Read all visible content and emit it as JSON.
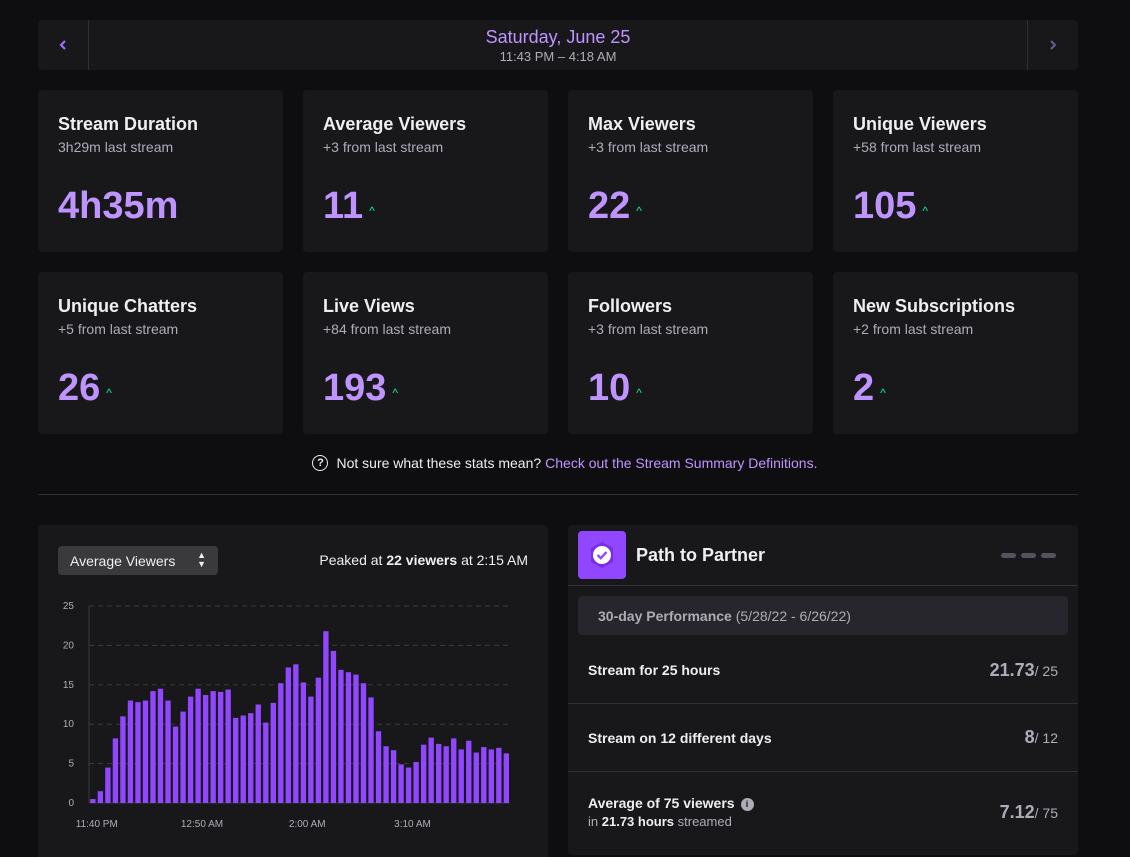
{
  "date_nav": {
    "prev_icon": "chevron-left-icon",
    "next_icon": "chevron-right-icon",
    "title": "Saturday, June 25",
    "range": "11:43 PM – 4:18 AM"
  },
  "stats": [
    {
      "title": "Stream Duration",
      "sub": "3h29m last stream",
      "value": "4h35m",
      "trend": ""
    },
    {
      "title": "Average Viewers",
      "sub": "+3 from last stream",
      "value": "11",
      "trend": "up"
    },
    {
      "title": "Max Viewers",
      "sub": "+3 from last stream",
      "value": "22",
      "trend": "up"
    },
    {
      "title": "Unique Viewers",
      "sub": "+58 from last stream",
      "value": "105",
      "trend": "up"
    },
    {
      "title": "Unique Chatters",
      "sub": "+5 from last stream",
      "value": "26",
      "trend": "up"
    },
    {
      "title": "Live Views",
      "sub": "+84 from last stream",
      "value": "193",
      "trend": "up"
    },
    {
      "title": "Followers",
      "sub": "+3 from last stream",
      "value": "10",
      "trend": "up"
    },
    {
      "title": "New Subscriptions",
      "sub": "+2 from last stream",
      "value": "2",
      "trend": "up"
    }
  ],
  "help": {
    "text": "Not sure what these stats mean?",
    "link": "Check out the Stream Summary Definitions."
  },
  "chart_panel": {
    "select_value": "Average Viewers",
    "peak_prefix": "Peaked at",
    "peak_value": "22 viewers",
    "peak_suffix": "at 2:15 AM"
  },
  "chart_data": {
    "type": "bar",
    "title": "",
    "xlabel": "",
    "ylabel": "",
    "ylim": [
      0,
      25
    ],
    "yticks": [
      0,
      5,
      10,
      15,
      20,
      25
    ],
    "grid": true,
    "xtick_labels": [
      {
        "label": "11:40 PM",
        "index": 0
      },
      {
        "label": "12:50 AM",
        "index": 14
      },
      {
        "label": "2:00 AM",
        "index": 28
      },
      {
        "label": "3:10 AM",
        "index": 42
      }
    ],
    "color": "#9147ff",
    "values": [
      0.5,
      1.5,
      4.5,
      8.2,
      11,
      13,
      12.8,
      13,
      14.2,
      14.5,
      13,
      9.7,
      11.6,
      13.5,
      14.5,
      13.7,
      14.2,
      14.1,
      14.4,
      10.8,
      11.1,
      11.4,
      12.5,
      10.2,
      12.7,
      15.2,
      17.2,
      17.6,
      15.3,
      13.5,
      15.9,
      21.8,
      19.3,
      16.9,
      16.6,
      16.3,
      15.2,
      13.4,
      9.1,
      7.2,
      6.7,
      4.9,
      4.5,
      5.2,
      7.4,
      8.3,
      7.5,
      7.2,
      8.2,
      6.8,
      7.9,
      6.4,
      7.1,
      6.8,
      7,
      6.3
    ]
  },
  "ptp": {
    "badge_icon": "partner-check-icon",
    "title": "Path to Partner",
    "perf_label": "30-day Performance",
    "perf_range": "(5/28/22 - 6/26/22)",
    "rows": [
      {
        "label": "Stream for 25 hours",
        "value": "21.73",
        "total": "/ 25"
      },
      {
        "label": "Stream on 12 different days",
        "value": "8",
        "total": "/ 12"
      },
      {
        "label": "Average of 75 viewers",
        "sub_prefix": "in",
        "sub_bold": "21.73 hours",
        "sub_suffix": "streamed",
        "value": "7.12",
        "total": "/ 75",
        "info_icon": "info-icon"
      }
    ]
  }
}
